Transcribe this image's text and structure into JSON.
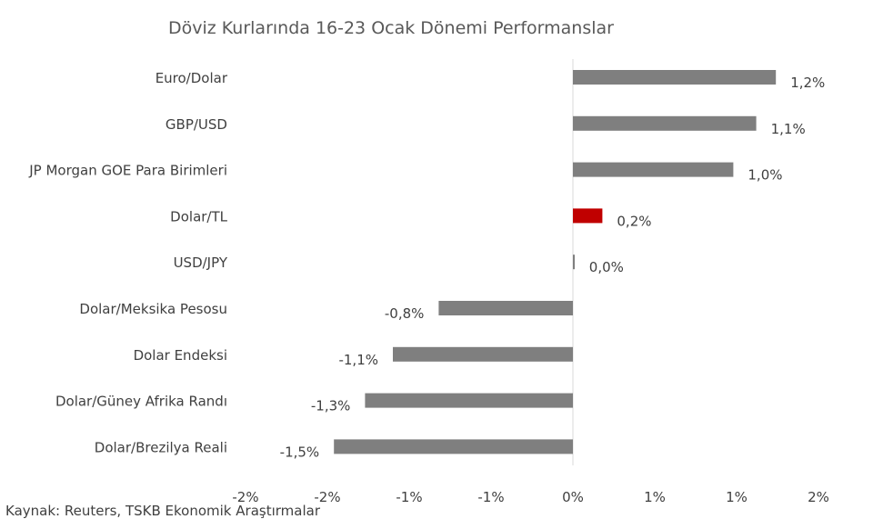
{
  "chart_data": {
    "type": "bar",
    "orientation": "horizontal",
    "title": "Döviz Kurlarında 16-23 Ocak Dönemi Performanslar",
    "categories": [
      "Euro/Dolar",
      "GBP/USD",
      "JP Morgan GOE Para Birimleri",
      "Dolar/TL",
      "USD/JPY",
      "Dolar/Meksika Pesosu",
      "Dolar Endeksi",
      "Dolar/Güney Afrika Randı",
      "Dolar/Brezilya Reali"
    ],
    "values": [
      1.24,
      1.12,
      0.98,
      0.18,
      0.01,
      -0.82,
      -1.1,
      -1.27,
      -1.46
    ],
    "data_labels": [
      "1,2%",
      "1,1%",
      "1,0%",
      "0,2%",
      "0,0%",
      "-0,8%",
      "-1,1%",
      "-1,3%",
      "-1,5%"
    ],
    "colors": [
      "#7f7f7f",
      "#7f7f7f",
      "#7f7f7f",
      "#c00000",
      "#7f7f7f",
      "#7f7f7f",
      "#7f7f7f",
      "#7f7f7f",
      "#7f7f7f"
    ],
    "xlim": [
      -2,
      1.5
    ],
    "x_ticks": [
      -2,
      -1.5,
      -1,
      -0.5,
      0,
      0.5,
      1,
      1.5
    ],
    "x_tick_labels": [
      "-2%",
      "-2%",
      "-1%",
      "-1%",
      "0%",
      "1%",
      "1%",
      "2%"
    ],
    "xlabel": "",
    "ylabel": "",
    "grid": false,
    "legend": "none"
  },
  "source": "Kaynak: Reuters, TSKB Ekonomik Araştırmalar"
}
